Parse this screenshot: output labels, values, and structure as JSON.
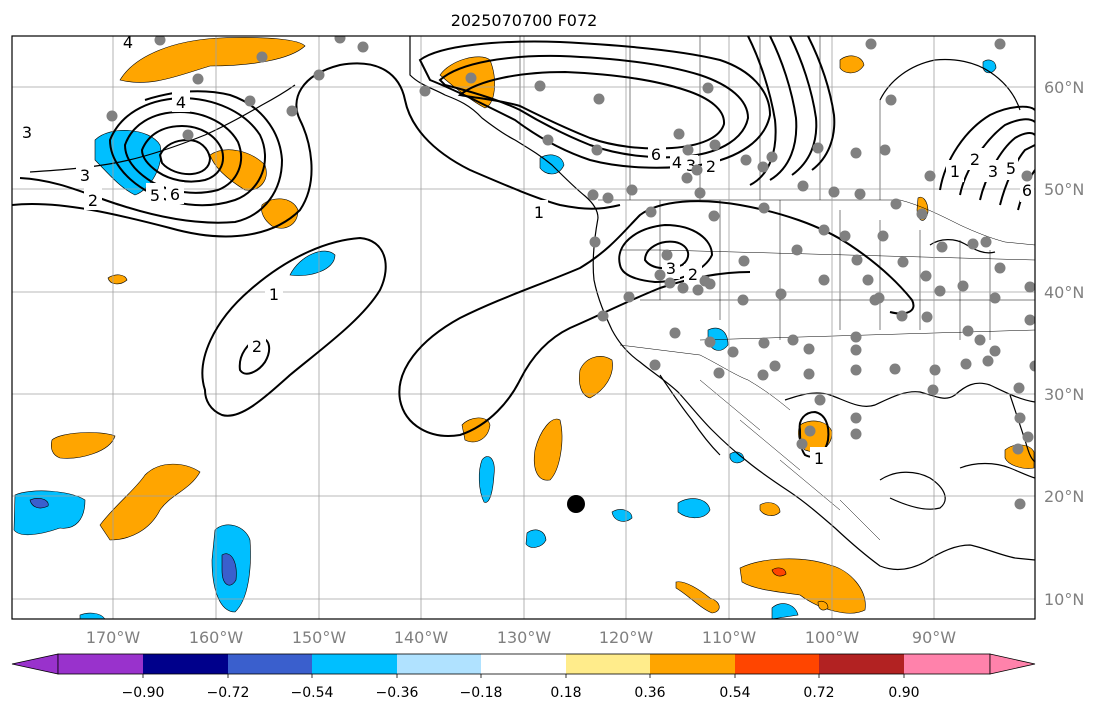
{
  "title": "2025070700 F072",
  "map": {
    "lon_labels": [
      "170°W",
      "160°W",
      "150°W",
      "140°W",
      "130°W",
      "120°W",
      "110°W",
      "100°W",
      "90°W"
    ],
    "lat_labels": [
      "60°N",
      "50°N",
      "40°N",
      "30°N",
      "20°N",
      "10°N"
    ],
    "gridlines": true,
    "contour_labels": [
      "4",
      "4",
      "3",
      "3",
      "2",
      "5",
      "6",
      "1",
      "1",
      "2",
      "6",
      "4",
      "3",
      "2",
      "1",
      "3",
      "2",
      "1",
      "2",
      "3",
      "5",
      "6"
    ]
  },
  "colorbar": {
    "tick_labels": [
      "−0.90",
      "−0.72",
      "−0.54",
      "−0.36",
      "−0.18",
      "0.18",
      "0.36",
      "0.54",
      "0.72",
      "0.90"
    ],
    "colors": [
      "#9932cc",
      "#00008b",
      "#3a5fcd",
      "#00bfff",
      "#b0e2ff",
      "#ffffff",
      "#ffec8b",
      "#ffa500",
      "#ff4500",
      "#b22222",
      "#ff82ab"
    ]
  },
  "colors": {
    "positive_fill": "#ffa500",
    "positive_strong": "#ff4500",
    "negative_fill": "#00bfff",
    "negative_strong": "#3a5fcd",
    "station_dot": "#808080",
    "marker_dot": "#000000",
    "grid": "#a0a0a0"
  }
}
